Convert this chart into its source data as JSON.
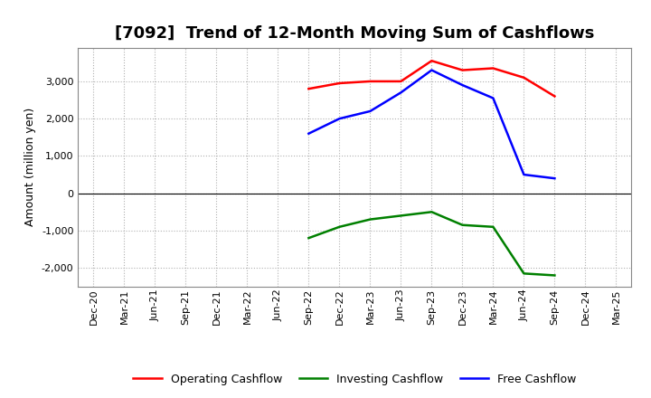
{
  "title": "[7092]  Trend of 12-Month Moving Sum of Cashflows",
  "ylabel": "Amount (million yen)",
  "ylim": [
    -2500,
    3900
  ],
  "yticks": [
    -2000,
    -1000,
    0,
    1000,
    2000,
    3000
  ],
  "x_labels": [
    "Dec-20",
    "Mar-21",
    "Jun-21",
    "Sep-21",
    "Dec-21",
    "Mar-22",
    "Jun-22",
    "Sep-22",
    "Dec-22",
    "Mar-23",
    "Jun-23",
    "Sep-23",
    "Dec-23",
    "Mar-24",
    "Jun-24",
    "Sep-24",
    "Dec-24",
    "Mar-25"
  ],
  "operating": {
    "label": "Operating Cashflow",
    "color": "#ff0000",
    "x_indices": [
      7,
      8,
      9,
      10,
      11,
      12,
      13,
      14,
      15
    ],
    "values": [
      2800,
      2950,
      3000,
      3000,
      3550,
      3300,
      3350,
      3100,
      2600
    ]
  },
  "investing": {
    "label": "Investing Cashflow",
    "color": "#008000",
    "x_indices": [
      7,
      8,
      9,
      10,
      11,
      12,
      13,
      14,
      15
    ],
    "values": [
      -1200,
      -900,
      -700,
      -600,
      -500,
      -850,
      -900,
      -2150,
      -2200
    ]
  },
  "free": {
    "label": "Free Cashflow",
    "color": "#0000ff",
    "x_indices": [
      7,
      8,
      9,
      10,
      11,
      12,
      13,
      14,
      15
    ],
    "values": [
      1600,
      2000,
      2200,
      2700,
      3300,
      2900,
      2550,
      500,
      400
    ]
  },
  "background_color": "#ffffff",
  "plot_bg_color": "#ffffff",
  "grid_color": "#b0b0b0",
  "title_fontsize": 13,
  "axis_fontsize": 9,
  "tick_fontsize": 8,
  "legend_fontsize": 9
}
